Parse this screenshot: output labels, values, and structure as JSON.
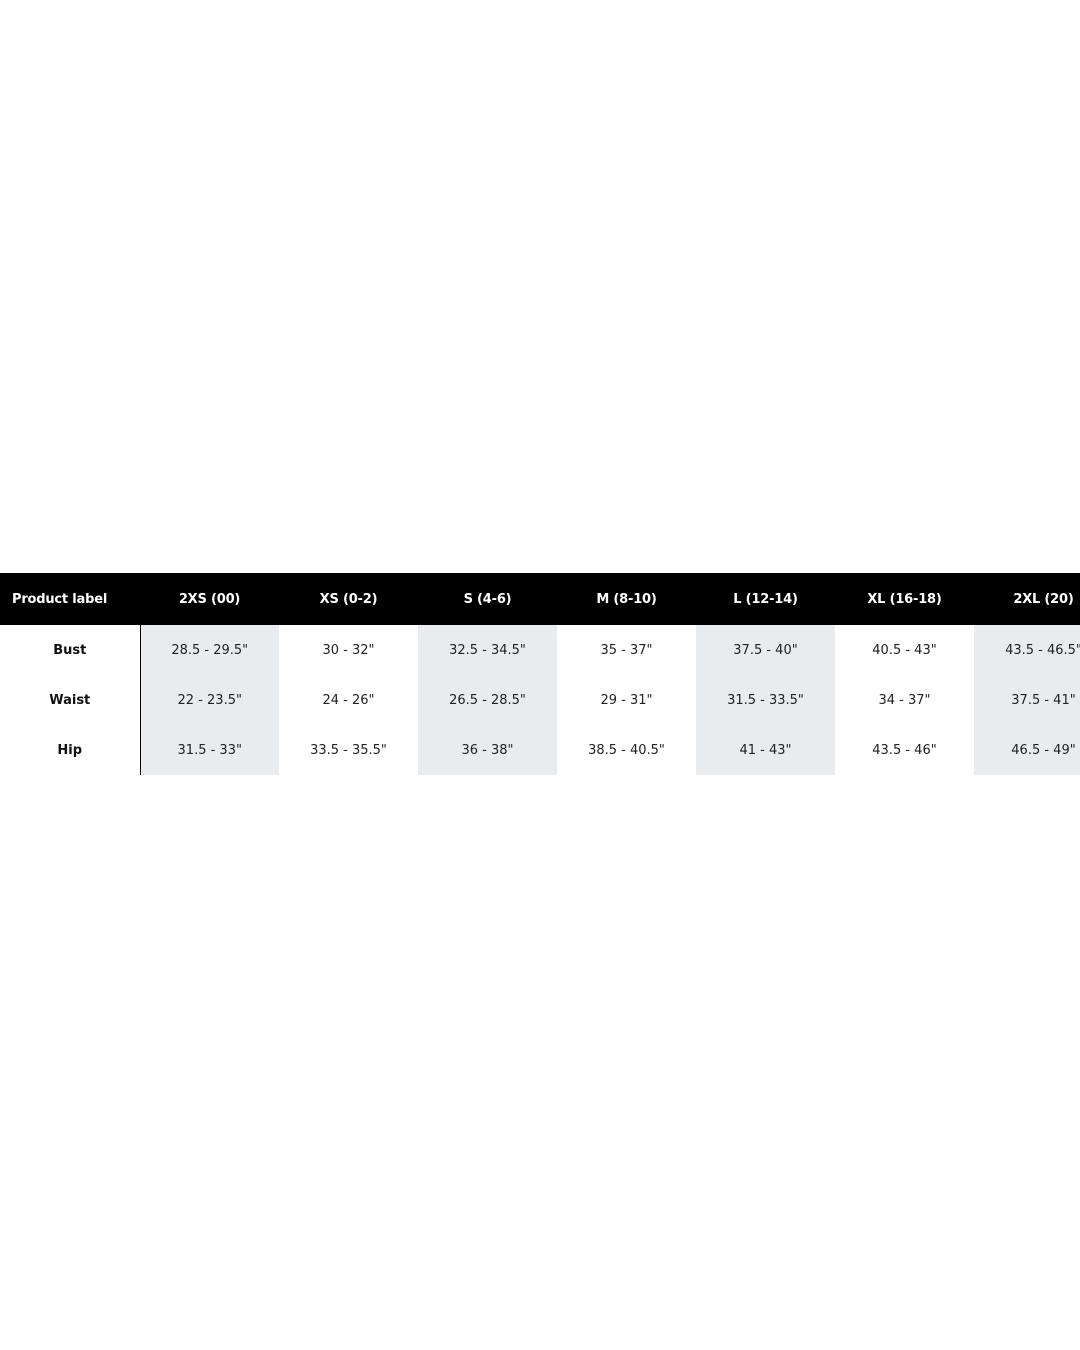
{
  "size_chart": {
    "header_label": "Product label",
    "sizes": [
      "2XS (00)",
      "XS (0-2)",
      "S (4-6)",
      "M (8-10)",
      "L (12-14)",
      "XL (16-18)",
      "2XL (20)"
    ],
    "rows": [
      {
        "label": "Bust",
        "values": [
          "28.5 - 29.5\"",
          "30 - 32\"",
          "32.5 - 34.5\"",
          "35 - 37\"",
          "37.5 - 40\"",
          "40.5 - 43\"",
          "43.5 - 46.5\""
        ]
      },
      {
        "label": "Waist",
        "values": [
          "22 - 23.5\"",
          "24 - 26\"",
          "26.5 - 28.5\"",
          "29 - 31\"",
          "31.5 - 33.5\"",
          "34 - 37\"",
          "37.5 - 41\""
        ]
      },
      {
        "label": "Hip",
        "values": [
          "31.5 - 33\"",
          "33.5 - 35.5\"",
          "36 - 38\"",
          "38.5 - 40.5\"",
          "41 - 43\"",
          "43.5 - 46\"",
          "46.5 - 49\""
        ]
      }
    ],
    "colors": {
      "header_bg": "#000000",
      "header_text": "#ffffff",
      "shaded_column": "#e9ecef"
    }
  }
}
